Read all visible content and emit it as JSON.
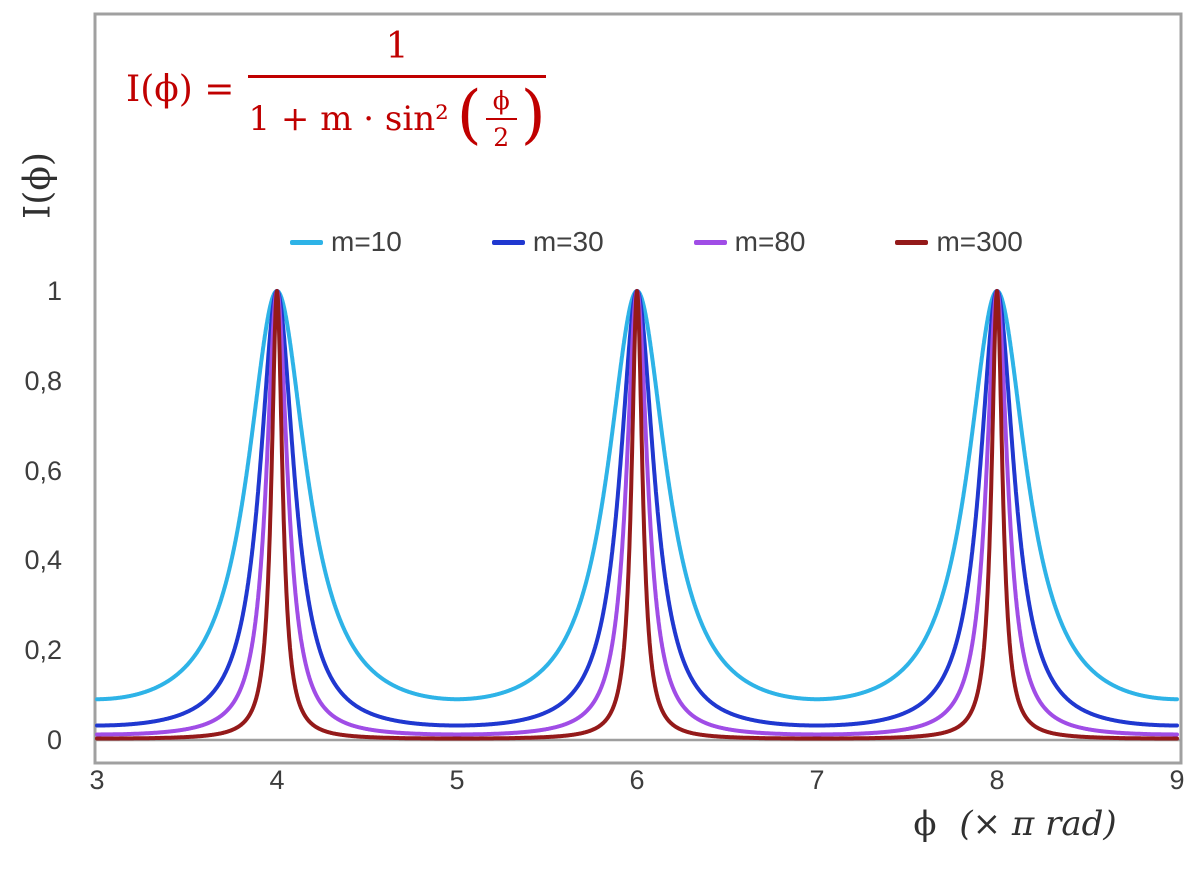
{
  "chart_data": {
    "type": "line",
    "title": "",
    "function": "I(x) = 1 / (1 + m · sin²(π·x/2)), x in units of π rad",
    "formula": {
      "lhs": "I(ϕ) =",
      "numerator": "1",
      "denominator_prefix": "1 + m · sin²",
      "paren_open": "(",
      "inner_numerator": "ϕ",
      "inner_denominator": "2",
      "paren_close": ")",
      "color": "#c00000"
    },
    "axes": {
      "y_title": "I(ϕ)",
      "x_title_phi": "ϕ",
      "x_title_rest": "(× π rad)"
    },
    "xlim": [
      3,
      9
    ],
    "ylim": [
      0,
      1
    ],
    "grid": false,
    "legend_position": "top-center",
    "frame_color": "#a0a0a0",
    "axis_line_color": "#9e9e9e",
    "x_ticks": [
      {
        "value": 3,
        "label": "3"
      },
      {
        "value": 4,
        "label": "4"
      },
      {
        "value": 5,
        "label": "5"
      },
      {
        "value": 6,
        "label": "6"
      },
      {
        "value": 7,
        "label": "7"
      },
      {
        "value": 8,
        "label": "8"
      },
      {
        "value": 9,
        "label": "9"
      }
    ],
    "y_ticks": [
      {
        "value": 0,
        "label": "0"
      },
      {
        "value": 0.2,
        "label": "0,2"
      },
      {
        "value": 0.4,
        "label": "0,4"
      },
      {
        "value": 0.6,
        "label": "0,6"
      },
      {
        "value": 0.8,
        "label": "0,8"
      },
      {
        "value": 1,
        "label": "1"
      }
    ],
    "series": [
      {
        "name": "m=10",
        "m": 10,
        "color": "#2eb3e7"
      },
      {
        "name": "m=30",
        "m": 30,
        "color": "#2038d0"
      },
      {
        "name": "m=80",
        "m": 80,
        "color": "#a04de6"
      },
      {
        "name": "m=300",
        "m": 300,
        "color": "#941a1a"
      }
    ]
  }
}
